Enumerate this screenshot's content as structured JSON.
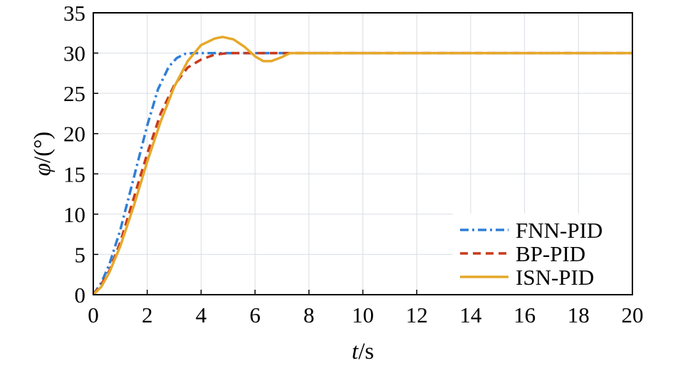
{
  "chart_data": {
    "type": "line",
    "xlabel_italic": "t",
    "xlabel_unit": "/s",
    "ylabel_italic": "φ",
    "ylabel_unit": "/(°)",
    "xlim": [
      0,
      20
    ],
    "ylim": [
      0,
      35
    ],
    "xticks": [
      "0",
      "2",
      "4",
      "6",
      "8",
      "10",
      "12",
      "14",
      "16",
      "18",
      "20"
    ],
    "yticks": [
      "0",
      "5",
      "10",
      "15",
      "20",
      "25",
      "30",
      "35"
    ],
    "grid": true,
    "legend_position": "bottom-right",
    "series": [
      {
        "name": "FNN-PID",
        "color": "#2f7fd6",
        "dash": "dashdot",
        "x": [
          0,
          0.3,
          0.6,
          1.0,
          1.5,
          2.0,
          2.4,
          2.8,
          3.1,
          3.4,
          3.7,
          4.0,
          5,
          8,
          20
        ],
        "y": [
          0,
          1.5,
          3.8,
          8.0,
          14.5,
          21.0,
          25.5,
          28.3,
          29.4,
          29.9,
          30.0,
          30.0,
          30.0,
          30.0,
          30.0
        ]
      },
      {
        "name": "BP-PID",
        "color": "#c83a1c",
        "dash": "dashed",
        "x": [
          0,
          0.3,
          0.6,
          1.0,
          1.5,
          2.0,
          2.5,
          3.0,
          3.5,
          4.0,
          4.5,
          5.0,
          6,
          8,
          20
        ],
        "y": [
          0,
          1.3,
          3.0,
          6.5,
          12.0,
          17.5,
          22.5,
          26.0,
          28.2,
          29.2,
          29.8,
          30.0,
          30.0,
          30.0,
          30.0
        ]
      },
      {
        "name": "ISN-PID",
        "color": "#e6a82a",
        "dash": "solid",
        "x": [
          0,
          0.3,
          0.6,
          1.0,
          1.5,
          2.0,
          2.5,
          3.0,
          3.5,
          4.0,
          4.5,
          4.8,
          5.2,
          5.6,
          6.0,
          6.3,
          6.6,
          7.0,
          7.3,
          8,
          20
        ],
        "y": [
          0,
          1.0,
          2.8,
          6.0,
          11.0,
          16.5,
          21.5,
          25.8,
          29.0,
          31.0,
          31.8,
          32.0,
          31.7,
          30.8,
          29.6,
          29.0,
          29.0,
          29.5,
          30.0,
          30.0,
          30.0
        ]
      }
    ]
  }
}
